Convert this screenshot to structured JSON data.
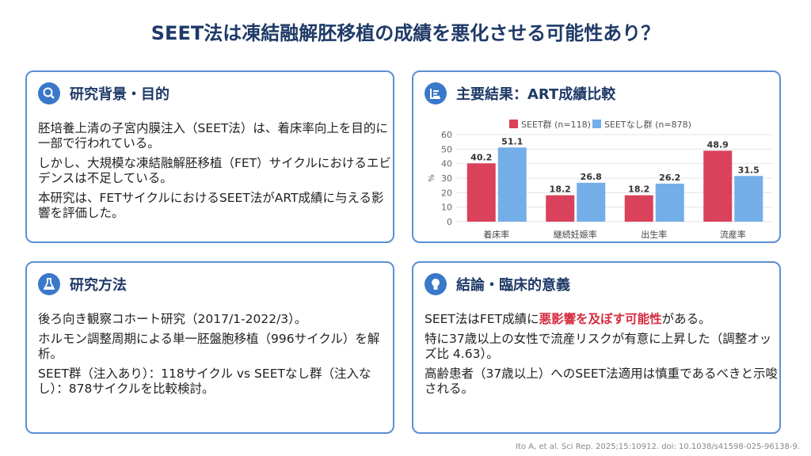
{
  "title": "SEET法は凍結融解胚移植の成績を悪化させる可能性あり？",
  "background": {
    "heading": "研究背景・目的",
    "paragraphs": [
      "胚培養上清の子宮内膜注入（SEET法）は、着床率向上を目的に一部で行われている。",
      "しかし、大規模な凍結融解胚移植（FET）サイクルにおけるエビデンスは不足している。",
      "本研究は、FETサイクルにおけるSEET法がART成績に与える影響を評価した。"
    ]
  },
  "methods": {
    "heading": "研究方法",
    "paragraphs": [
      "後ろ向き観察コホート研究（2017/1-2022/3）。",
      "ホルモン調整周期による単一胚盤胞移植（996サイクル）を解析。",
      "SEET群（注入あり）：118サイクル vs SEETなし群（注入なし）：878サイクルを比較検討。"
    ]
  },
  "results": {
    "heading": "主要結果：ART成績比較"
  },
  "conclusion": {
    "heading": "結論・臨床的意義",
    "lead": [
      "SEET法はFET成績に",
      "悪影響を及ぼす可能性",
      "がある。"
    ],
    "paragraphs": [
      "特に37歳以上の女性で流産リスクが有意に上昇した（調整オッズ比 4.63）。",
      "高齢患者（37歳以上）へのSEET法適用は慎重であるべきと示唆される。"
    ]
  },
  "citation": "Ito A, et al. Sci Rep. 2025;15:10912. doi: 10.1038/s41598-025-96138-9.",
  "chart_data": {
    "type": "bar",
    "categories": [
      "着床率",
      "継続妊娠率",
      "出生率",
      "流産率"
    ],
    "series": [
      {
        "name": "SEET群 (n=118)",
        "color": "#d9425a",
        "values": [
          40.2,
          18.2,
          18.2,
          48.9
        ]
      },
      {
        "name": "SEETなし群 (n=878)",
        "color": "#74aee8",
        "values": [
          51.1,
          26.8,
          26.2,
          31.5
        ]
      }
    ],
    "y_label": "%",
    "ylim": [
      0,
      60
    ],
    "yticks": [
      0,
      10,
      20,
      30,
      40,
      50,
      60
    ],
    "grid": true
  }
}
